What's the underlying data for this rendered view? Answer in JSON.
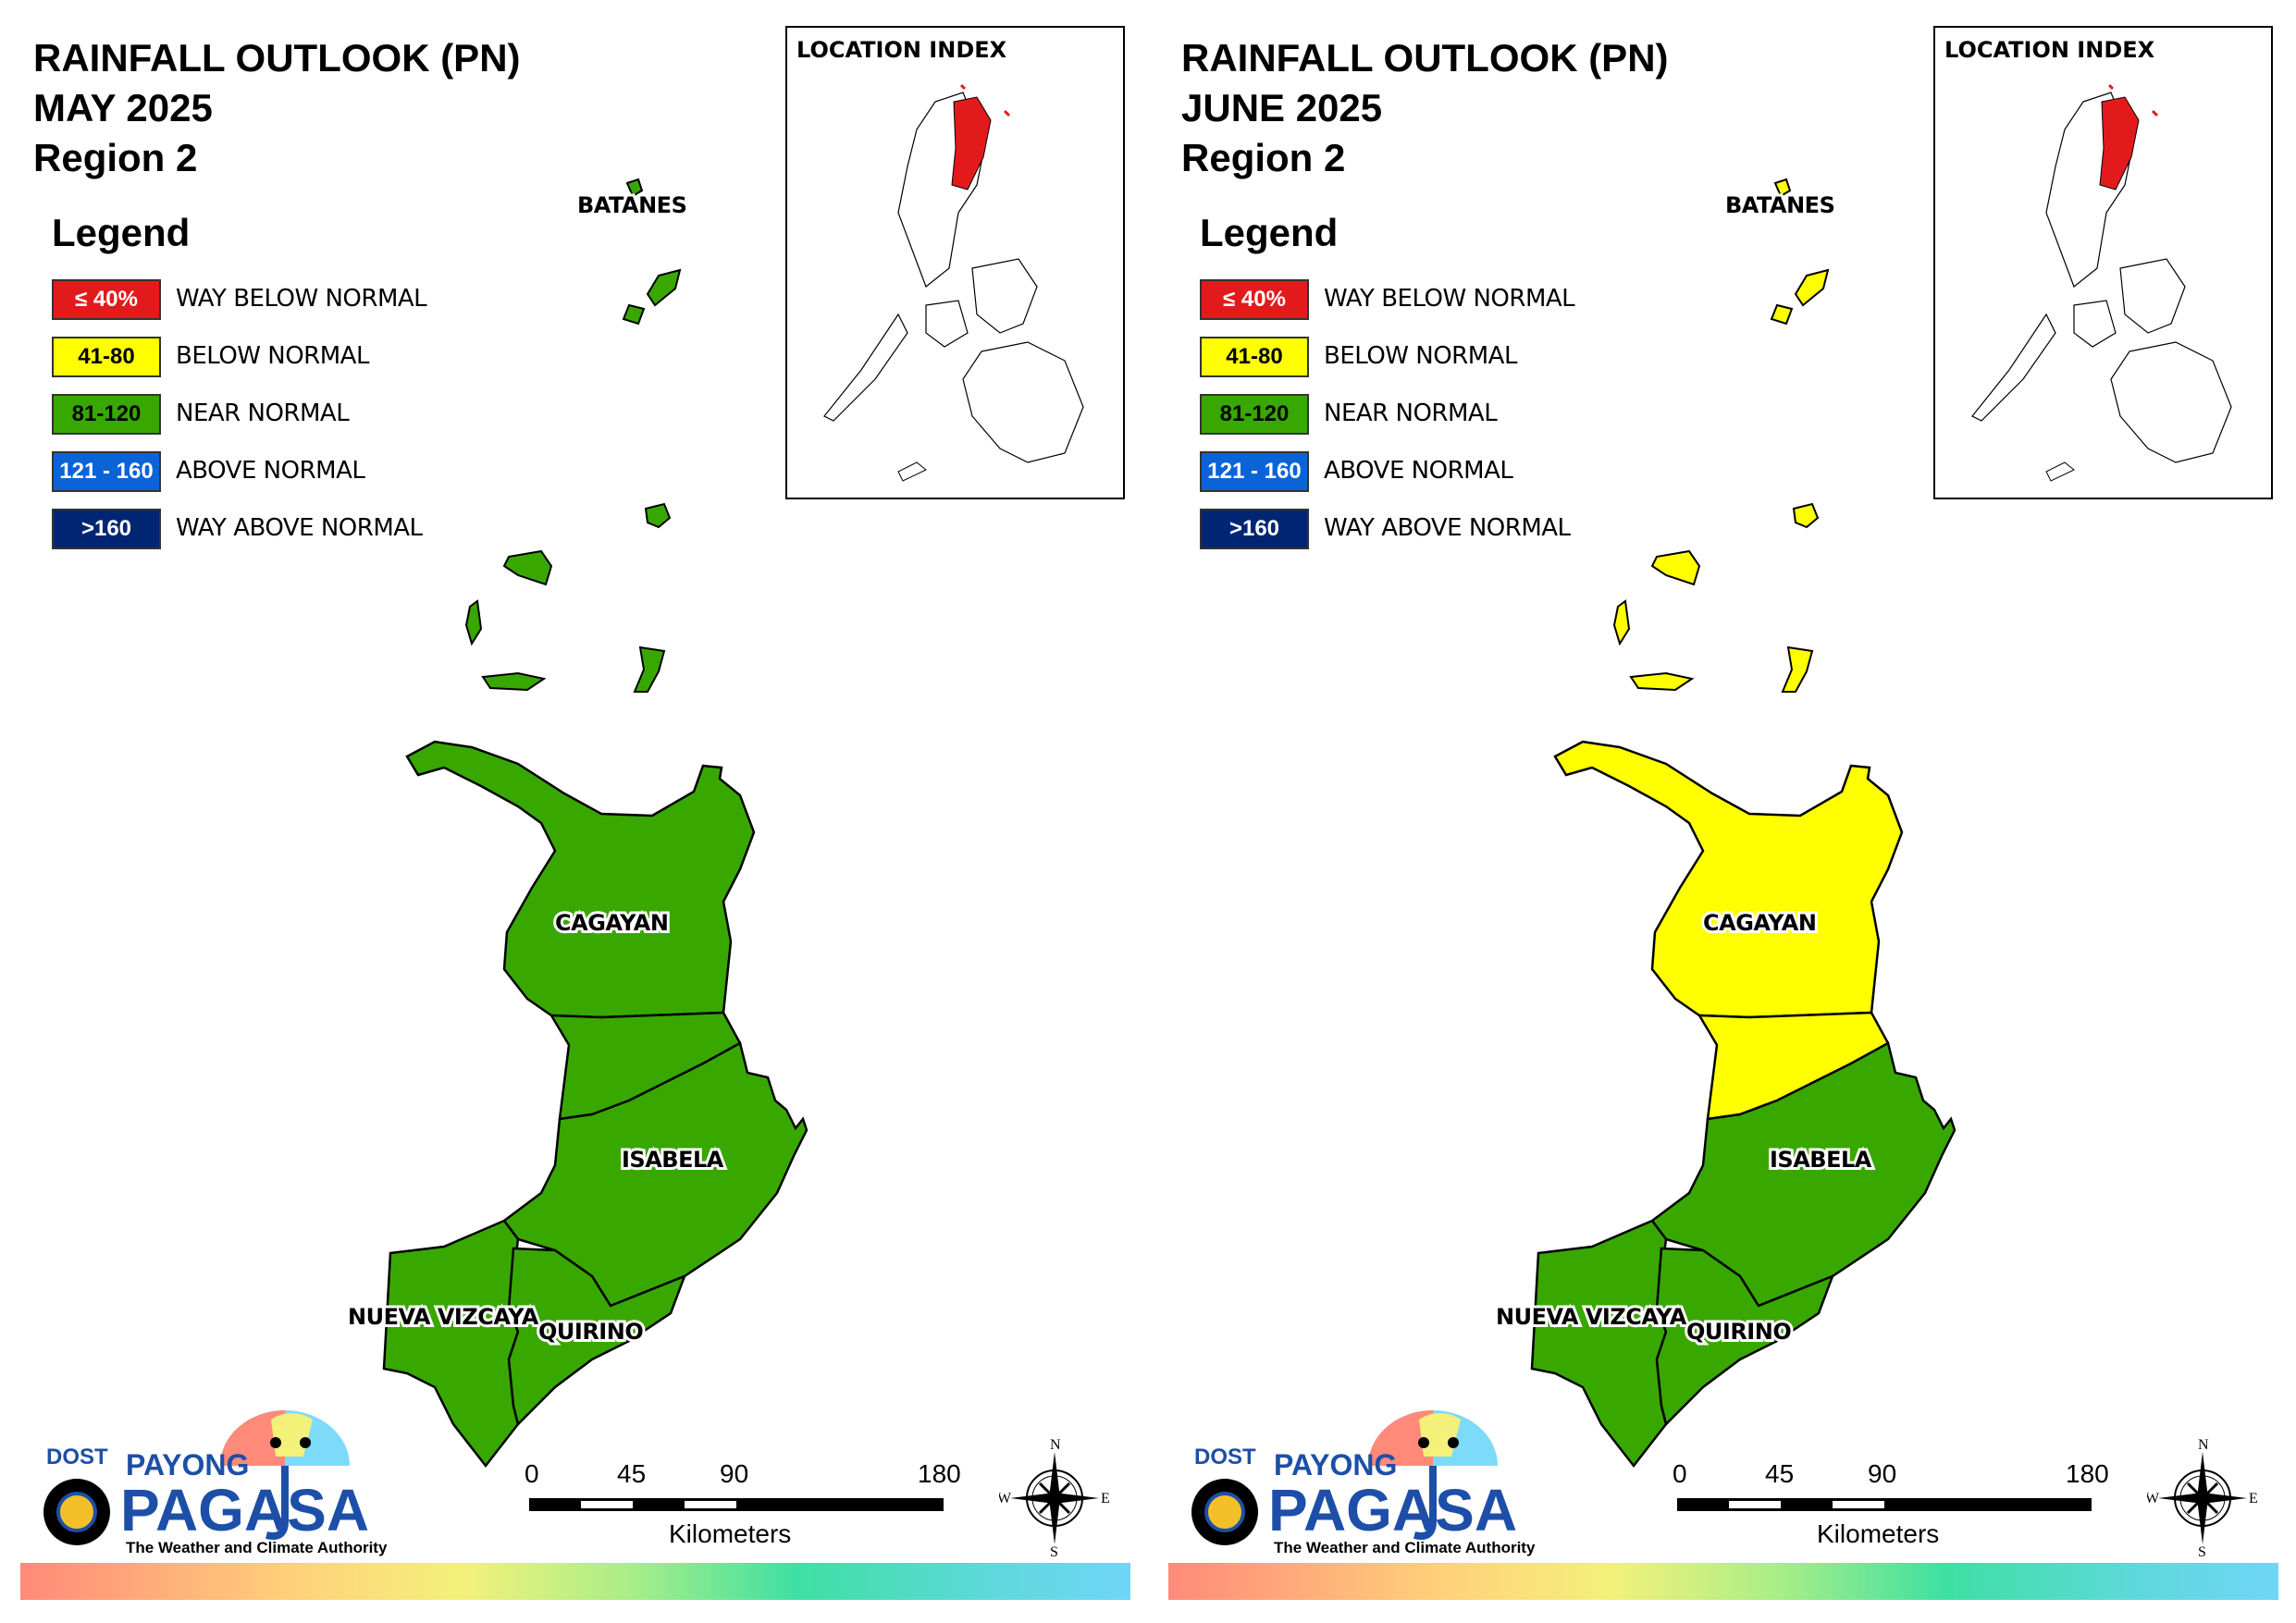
{
  "panels": [
    {
      "title_line1": "RAINFALL OUTLOOK (PN)",
      "title_line2": "MAY 2025",
      "title_line3": "Region 2",
      "legend_title": "Legend",
      "location_index": "LOCATION INDEX",
      "provinces": {
        "batanes": {
          "label": "BATANES",
          "category": "near-normal"
        },
        "cagayan": {
          "label": "CAGAYAN",
          "category": "near-normal"
        },
        "isabela": {
          "label": "ISABELA",
          "category": "near-normal"
        },
        "isabela_north": {
          "category": "near-normal"
        },
        "nueva_vizcaya": {
          "label": "NUEVA VIZCAYA",
          "category": "near-normal"
        },
        "quirino": {
          "label": "QUIRINO",
          "category": "near-normal"
        }
      },
      "scale": {
        "ticks": [
          "0",
          "45",
          "90",
          "180"
        ],
        "unit": "Kilometers"
      },
      "compass": {
        "n": "N",
        "e": "E",
        "s": "S",
        "w": "W"
      },
      "logo": {
        "dost": "DOST",
        "payong": "PAYONG",
        "pagasa": "PAGASA",
        "tagline": "The Weather and Climate Authority"
      }
    },
    {
      "title_line1": "RAINFALL OUTLOOK (PN)",
      "title_line2": "JUNE 2025",
      "title_line3": "Region 2",
      "legend_title": "Legend",
      "location_index": "LOCATION INDEX",
      "provinces": {
        "batanes": {
          "label": "BATANES",
          "category": "below-normal"
        },
        "cagayan": {
          "label": "CAGAYAN",
          "category": "below-normal"
        },
        "isabela": {
          "label": "ISABELA",
          "category": "near-normal"
        },
        "isabela_north": {
          "category": "below-normal"
        },
        "nueva_vizcaya": {
          "label": "NUEVA VIZCAYA",
          "category": "near-normal"
        },
        "quirino": {
          "label": "QUIRINO",
          "category": "near-normal"
        }
      },
      "scale": {
        "ticks": [
          "0",
          "45",
          "90",
          "180"
        ],
        "unit": "Kilometers"
      },
      "compass": {
        "n": "N",
        "e": "E",
        "s": "S",
        "w": "W"
      },
      "logo": {
        "dost": "DOST",
        "payong": "PAYONG",
        "pagasa": "PAGASA",
        "tagline": "The Weather and Climate Authority"
      }
    }
  ],
  "legend": [
    {
      "key": "way-below-normal",
      "range": "≤ 40%",
      "label": "WAY BELOW NORMAL",
      "color": "#e31a1c",
      "text_color": "#ffffff"
    },
    {
      "key": "below-normal",
      "range": "41-80",
      "label": "BELOW NORMAL",
      "color": "#ffff00",
      "text_color": "#000000"
    },
    {
      "key": "near-normal",
      "range": "81-120",
      "label": "NEAR NORMAL",
      "color": "#38a800",
      "text_color": "#000000"
    },
    {
      "key": "above-normal",
      "range": "121 - 160",
      "label": "ABOVE NORMAL",
      "color": "#0a64d8",
      "text_color": "#ffffff"
    },
    {
      "key": "way-above-normal",
      "range": ">160",
      "label": "WAY ABOVE NORMAL",
      "color": "#002673",
      "text_color": "#ffffff"
    }
  ],
  "colors": {
    "near-normal": "#38a800",
    "below-normal": "#ffff00",
    "index-highlight": "#e31a1c"
  }
}
